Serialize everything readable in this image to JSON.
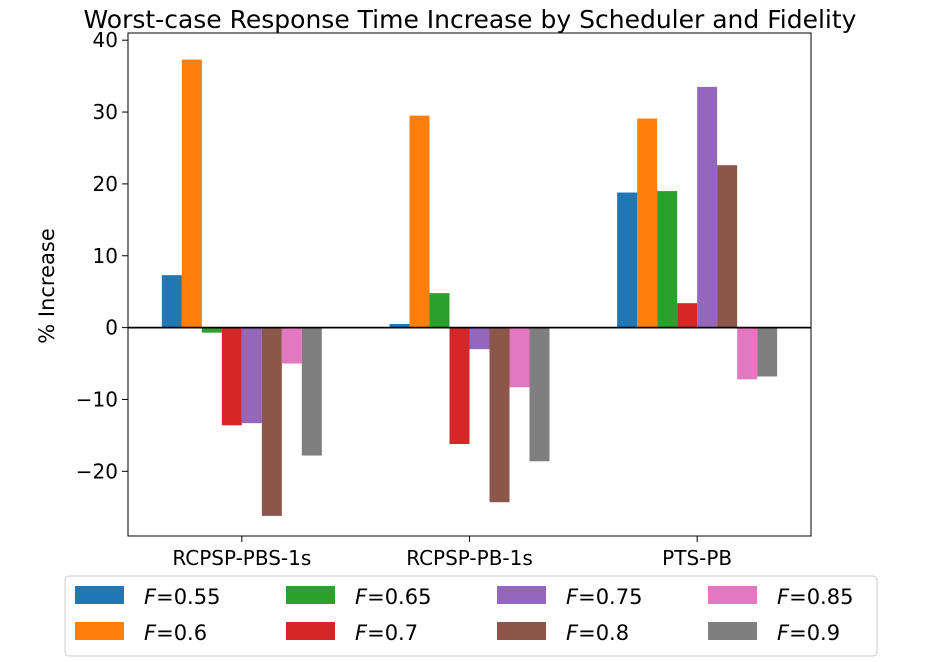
{
  "chart_data": {
    "type": "bar",
    "title": "Worst-case Response Time Increase by Scheduler and Fidelity",
    "xlabel": "",
    "ylabel": "% Increase",
    "categories": [
      "RCPSP-PBS-1s",
      "RCPSP-PB-1s",
      "PTS-PB"
    ],
    "ylim": [
      -29,
      41
    ],
    "yticks": [
      -20,
      -10,
      0,
      10,
      20,
      30,
      40
    ],
    "grid": false,
    "legend_position": "bottom",
    "legend_columns": 4,
    "series": [
      {
        "name": "F=0.55",
        "legend_prefix": "F",
        "legend_value": "=0.55",
        "color": "#1f77b4",
        "values": [
          7.3,
          0.5,
          18.8
        ]
      },
      {
        "name": "F=0.6",
        "legend_prefix": "F",
        "legend_value": "=0.6",
        "color": "#ff7f0e",
        "values": [
          37.3,
          29.5,
          29.1
        ]
      },
      {
        "name": "F=0.65",
        "legend_prefix": "F",
        "legend_value": "=0.65",
        "color": "#2ca02c",
        "values": [
          -0.7,
          4.8,
          19.0
        ]
      },
      {
        "name": "F=0.7",
        "legend_prefix": "F",
        "legend_value": "=0.7",
        "color": "#d62728",
        "values": [
          -13.6,
          -16.2,
          3.4
        ]
      },
      {
        "name": "F=0.75",
        "legend_prefix": "F",
        "legend_value": "=0.75",
        "color": "#9467bd",
        "values": [
          -13.3,
          -3.0,
          33.5
        ]
      },
      {
        "name": "F=0.8",
        "legend_prefix": "F",
        "legend_value": "=0.8",
        "color": "#8c564b",
        "values": [
          -26.2,
          -24.3,
          22.6
        ]
      },
      {
        "name": "F=0.85",
        "legend_prefix": "F",
        "legend_value": "=0.85",
        "color": "#e377c2",
        "values": [
          -5.0,
          -8.3,
          -7.2
        ]
      },
      {
        "name": "F=0.9",
        "legend_prefix": "F",
        "legend_value": "=0.9",
        "color": "#7f7f7f",
        "values": [
          -17.8,
          -18.6,
          -6.8
        ]
      }
    ]
  }
}
